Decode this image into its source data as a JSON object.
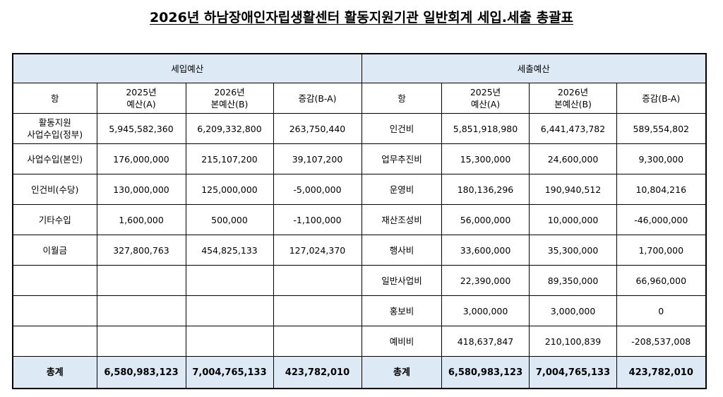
{
  "title": "2026년 하남장애인자립생활센터 활동지원기관 일반회계 세입.세출 총괄표",
  "revenue": {
    "section_label": "세입예산",
    "headers": [
      "항",
      "2025년\n예산(A)",
      "2026년\n본예산(B)",
      "증감(B-A)"
    ],
    "rows": [
      {
        "item": "활동지원\n사업수입(정부)",
        "a": "5,945,582,360",
        "b": "6,209,332,800",
        "diff": "263,750,440"
      },
      {
        "item": "사업수입(본인)",
        "a": "176,000,000",
        "b": "215,107,200",
        "diff": "39,107,200"
      },
      {
        "item": "인건비(수당)",
        "a": "130,000,000",
        "b": "125,000,000",
        "diff": "-5,000,000"
      },
      {
        "item": "기타수입",
        "a": "1,600,000",
        "b": "500,000",
        "diff": "-1,100,000"
      },
      {
        "item": "이월금",
        "a": "327,800,763",
        "b": "454,825,133",
        "diff": "127,024,370"
      },
      {
        "item": "",
        "a": "",
        "b": "",
        "diff": ""
      },
      {
        "item": "",
        "a": "",
        "b": "",
        "diff": ""
      },
      {
        "item": "",
        "a": "",
        "b": "",
        "diff": ""
      }
    ],
    "total": {
      "item": "총계",
      "a": "6,580,983,123",
      "b": "7,004,765,133",
      "diff": "423,782,010"
    }
  },
  "expense": {
    "section_label": "세출예산",
    "headers": [
      "항",
      "2025년\n예산(A)",
      "2026년\n본예산(B)",
      "증감(B-A)"
    ],
    "rows": [
      {
        "item": "인건비",
        "a": "5,851,918,980",
        "b": "6,441,473,782",
        "diff": "589,554,802"
      },
      {
        "item": "업무추진비",
        "a": "15,300,000",
        "b": "24,600,000",
        "diff": "9,300,000"
      },
      {
        "item": "운영비",
        "a": "180,136,296",
        "b": "190,940,512",
        "diff": "10,804,216"
      },
      {
        "item": "재산조성비",
        "a": "56,000,000",
        "b": "10,000,000",
        "diff": "-46,000,000"
      },
      {
        "item": "행사비",
        "a": "33,600,000",
        "b": "35,300,000",
        "diff": "1,700,000"
      },
      {
        "item": "일반사업비",
        "a": "22,390,000",
        "b": "89,350,000",
        "diff": "66,960,000"
      },
      {
        "item": "홍보비",
        "a": "3,000,000",
        "b": "3,000,000",
        "diff": "0"
      },
      {
        "item": "예비비",
        "a": "418,637,847",
        "b": "210,100,839",
        "diff": "-208,537,008"
      }
    ],
    "total": {
      "item": "총계",
      "a": "6,580,983,123",
      "b": "7,004,765,133",
      "diff": "423,782,010"
    }
  }
}
